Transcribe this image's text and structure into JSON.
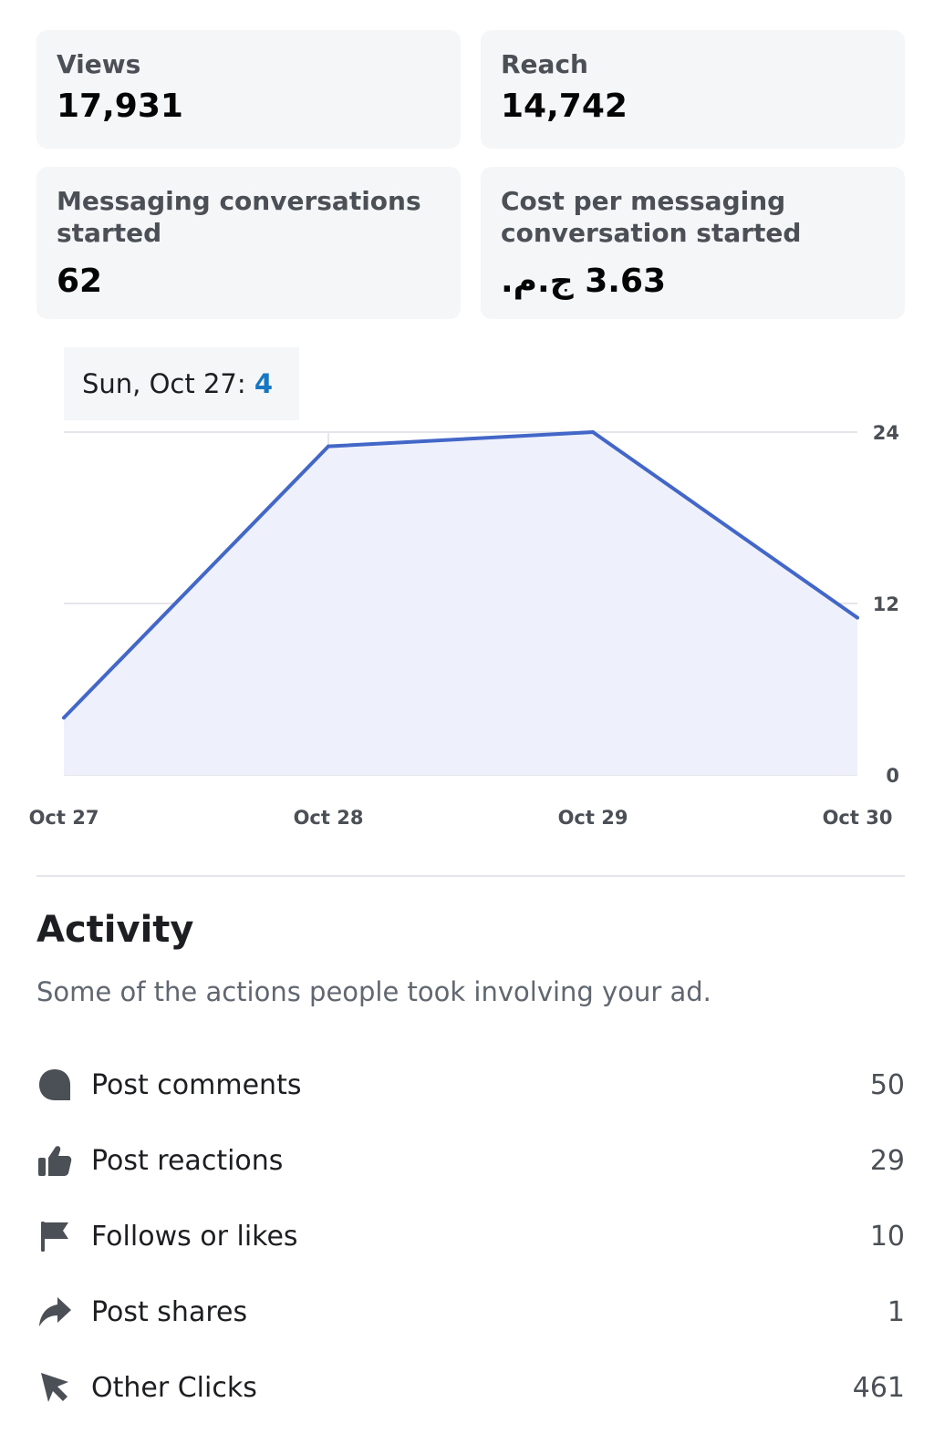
{
  "metrics": {
    "views": {
      "label": "Views",
      "value": "17,931"
    },
    "reach": {
      "label": "Reach",
      "value": "14,742"
    },
    "messaging": {
      "label": "Messaging conversations started",
      "value": "62"
    },
    "cost": {
      "label": "Cost per messaging conversation started",
      "value": "3.63 ج.م."
    }
  },
  "tooltip": {
    "date": "Sun, Oct 27: ",
    "value": "4"
  },
  "chart_data": {
    "type": "area",
    "categories": [
      "Oct 27",
      "Oct 28",
      "Oct 29",
      "Oct 30"
    ],
    "values": [
      4,
      23,
      24,
      11
    ],
    "y_ticks": [
      "0",
      "12",
      "24"
    ],
    "ylim": [
      0,
      24
    ],
    "grid": true,
    "y_axis_side": "right",
    "line_color": "#4267c8",
    "fill_color": "#eef1fb"
  },
  "activity": {
    "title": "Activity",
    "subtitle": "Some of the actions people took involving your ad.",
    "items": [
      {
        "label": "Post comments",
        "value": "50",
        "icon": "comment-icon"
      },
      {
        "label": "Post reactions",
        "value": "29",
        "icon": "thumbs-up-icon"
      },
      {
        "label": "Follows or likes",
        "value": "10",
        "icon": "flag-icon"
      },
      {
        "label": "Post shares",
        "value": "1",
        "icon": "share-arrow-icon"
      },
      {
        "label": "Other Clicks",
        "value": "461",
        "icon": "cursor-click-icon"
      }
    ]
  }
}
